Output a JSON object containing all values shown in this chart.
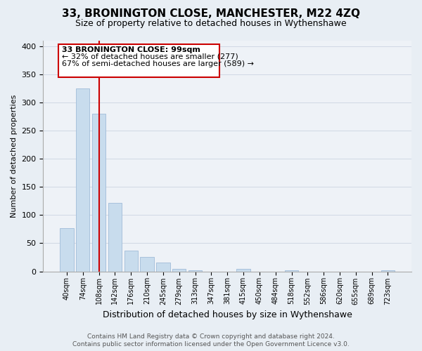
{
  "title": "33, BRONINGTON CLOSE, MANCHESTER, M22 4ZQ",
  "subtitle": "Size of property relative to detached houses in Wythenshawe",
  "xlabel": "Distribution of detached houses by size in Wythenshawe",
  "ylabel": "Number of detached properties",
  "bar_labels": [
    "40sqm",
    "74sqm",
    "108sqm",
    "142sqm",
    "176sqm",
    "210sqm",
    "245sqm",
    "279sqm",
    "313sqm",
    "347sqm",
    "381sqm",
    "415sqm",
    "450sqm",
    "484sqm",
    "518sqm",
    "552sqm",
    "586sqm",
    "620sqm",
    "655sqm",
    "689sqm",
    "723sqm"
  ],
  "bar_values": [
    77,
    325,
    280,
    122,
    37,
    25,
    15,
    5,
    2,
    0,
    0,
    4,
    0,
    0,
    2,
    0,
    0,
    0,
    0,
    0,
    2
  ],
  "bar_color": "#c8dced",
  "bar_edge_color": "#a0bcd8",
  "marker_index": 2,
  "marker_line_color": "#cc0000",
  "ylim": [
    0,
    410
  ],
  "yticks": [
    0,
    50,
    100,
    150,
    200,
    250,
    300,
    350,
    400
  ],
  "annotation_title": "33 BRONINGTON CLOSE: 99sqm",
  "annotation_line1": "← 32% of detached houses are smaller (277)",
  "annotation_line2": "67% of semi-detached houses are larger (589) →",
  "footer_line1": "Contains HM Land Registry data © Crown copyright and database right 2024.",
  "footer_line2": "Contains public sector information licensed under the Open Government Licence v3.0.",
  "bg_color": "#e8eef4",
  "plot_bg_color": "#eef2f7",
  "grid_color": "#d0d8e4",
  "title_fontsize": 11,
  "subtitle_fontsize": 9,
  "xlabel_fontsize": 9,
  "ylabel_fontsize": 8,
  "tick_fontsize": 8,
  "xtick_fontsize": 7,
  "ann_fontsize": 8,
  "footer_fontsize": 6.5
}
